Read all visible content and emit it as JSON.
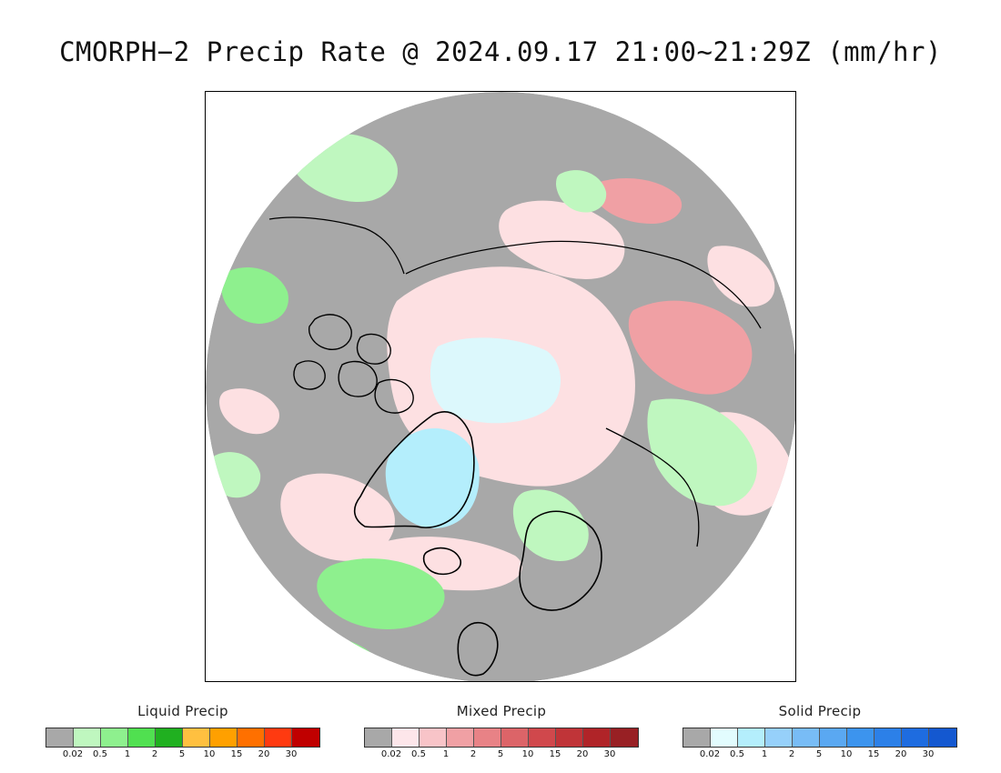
{
  "title": "CMORPH−2 Precip Rate @ 2024.09.17 21:00~21:29Z (mm/hr)",
  "legends": [
    {
      "title": "Liquid Precip",
      "colors": [
        "#a8a8a8",
        "#bff7bf",
        "#8ef08e",
        "#50e050",
        "#20b020",
        "#ffc040",
        "#ffa000",
        "#ff7000",
        "#ff3a10",
        "#c00000"
      ],
      "ticks": [
        "0.02",
        "0.5",
        "1",
        "2",
        "5",
        "10",
        "15",
        "20",
        "30"
      ]
    },
    {
      "title": "Mixed Precip",
      "colors": [
        "#a8a8a8",
        "#fde6ea",
        "#f8c4c8",
        "#f0a0a4",
        "#e88286",
        "#dc6468",
        "#d0484c",
        "#c03438",
        "#b02428",
        "#982024"
      ],
      "ticks": [
        "0.02",
        "0.5",
        "1",
        "2",
        "5",
        "10",
        "15",
        "20",
        "30"
      ]
    },
    {
      "title": "Solid Precip",
      "colors": [
        "#a8a8a8",
        "#e2fcfe",
        "#b4eefc",
        "#96d0fa",
        "#78bcf6",
        "#5aa8f2",
        "#3c94ee",
        "#2c80e8",
        "#1e6ce0",
        "#1458d0"
      ],
      "ticks": [
        "0.02",
        "0.5",
        "1",
        "2",
        "5",
        "10",
        "15",
        "20",
        "30"
      ]
    }
  ],
  "map_colors": {
    "no_precip": "#a8a8a8",
    "liquid_light": "#bff7bf",
    "liquid_mid": "#8ef08e",
    "liquid_heavy": "#20b020",
    "mixed_light": "#fde0e2",
    "mixed_mid": "#f0a0a4",
    "mixed_heavy": "#dc6468",
    "solid_light": "#dcf8fc",
    "solid_mid": "#b4eefc",
    "coastline": "#000000"
  }
}
